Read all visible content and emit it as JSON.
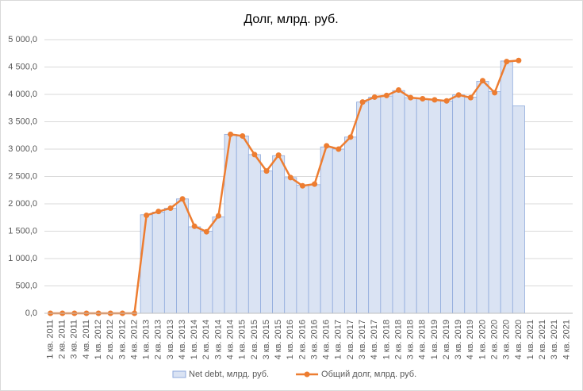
{
  "chart_data": {
    "type": "combo",
    "title": "Долг, млрд. руб.",
    "categories": [
      "1 кв. 2011",
      "2 кв. 2011",
      "3 кв. 2011",
      "4 кв. 2011",
      "1 кв. 2012",
      "2 кв. 2012",
      "3 кв. 2012",
      "4 кв. 2012",
      "1 кв. 2013",
      "2 кв. 2013",
      "3 кв. 2013",
      "4 кв. 2013",
      "1 кв. 2014",
      "2 кв. 2014",
      "3 кв. 2014",
      "4 кв. 2014",
      "1 кв. 2015",
      "2 кв. 2015",
      "3 кв. 2015",
      "4 кв. 2015",
      "1 кв. 2016",
      "2 кв. 2016",
      "3 кв. 2016",
      "4 кв. 2016",
      "1 кв. 2017",
      "2 кв. 2017",
      "3 кв. 2017",
      "4 кв. 2017",
      "1 кв. 2018",
      "2 кв. 2018",
      "3 кв. 2018",
      "4 кв. 2018",
      "1 кв. 2019",
      "2 кв. 2019",
      "3 кв. 2019",
      "4 кв. 2019",
      "1 кв. 2020",
      "2 кв. 2020",
      "3 кв. 2020",
      "4 кв. 2020",
      "1 кв. 2021",
      "2 кв. 2021",
      "3 кв. 2021",
      "4 кв. 2021"
    ],
    "series": [
      {
        "name": "Net debt, млрд. руб.",
        "type": "bar",
        "color": "#dae3f3",
        "values": [
          0,
          0,
          0,
          0,
          0,
          0,
          0,
          0,
          1800,
          1850,
          1920,
          2090,
          1580,
          1500,
          1760,
          3270,
          3240,
          2900,
          2600,
          2880,
          2480,
          2340,
          2350,
          3040,
          3000,
          3220,
          3860,
          3950,
          3970,
          4070,
          3940,
          3920,
          3900,
          3880,
          3990,
          3950,
          4240,
          4050,
          4610,
          3790,
          null,
          null,
          null,
          null
        ]
      },
      {
        "name": "Общий долг, млрд. руб.",
        "type": "line",
        "color": "#ed7d31",
        "values": [
          0,
          0,
          0,
          0,
          0,
          0,
          0,
          0,
          1790,
          1860,
          1920,
          2090,
          1590,
          1490,
          1780,
          3270,
          3240,
          2900,
          2600,
          2890,
          2480,
          2330,
          2360,
          3060,
          3000,
          3220,
          3860,
          3950,
          3980,
          4080,
          3940,
          3920,
          3900,
          3880,
          3990,
          3940,
          4250,
          4030,
          4600,
          4620,
          null,
          null,
          null,
          null
        ]
      }
    ],
    "ylim": [
      0,
      5000
    ],
    "yticks": [
      {
        "value": 0,
        "label": "0,0"
      },
      {
        "value": 500,
        "label": "500,0"
      },
      {
        "value": 1000,
        "label": "1 000,0"
      },
      {
        "value": 1500,
        "label": "1 500,0"
      },
      {
        "value": 2000,
        "label": "2 000,0"
      },
      {
        "value": 2500,
        "label": "2 500,0"
      },
      {
        "value": 3000,
        "label": "3 000,0"
      },
      {
        "value": 3500,
        "label": "3 500,0"
      },
      {
        "value": 4000,
        "label": "4 000,0"
      },
      {
        "value": 4500,
        "label": "4 500,0"
      },
      {
        "value": 5000,
        "label": "5 000,0"
      }
    ],
    "grid": true,
    "legend": "bottom"
  }
}
